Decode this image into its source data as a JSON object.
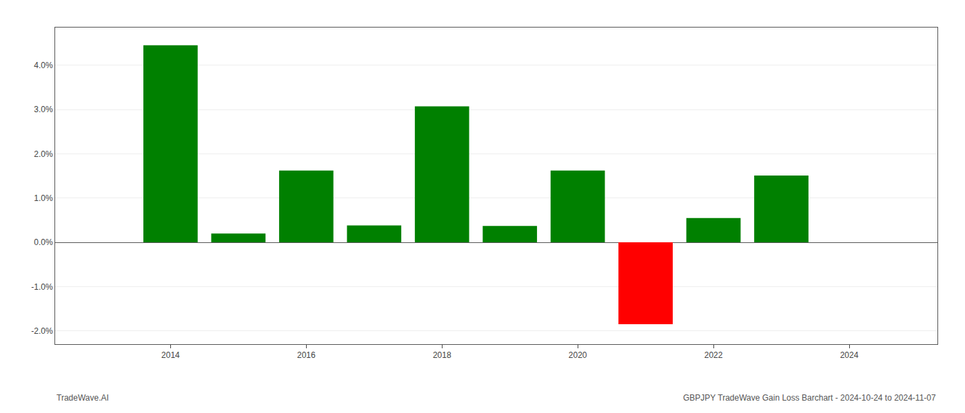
{
  "chart_data": {
    "type": "bar",
    "x": [
      2014,
      2015,
      2016,
      2017,
      2018,
      2019,
      2020,
      2021,
      2022,
      2023
    ],
    "values": [
      4.45,
      0.2,
      1.62,
      0.38,
      3.07,
      0.37,
      1.62,
      -1.85,
      0.55,
      1.51
    ],
    "colors": [
      "#008000",
      "#008000",
      "#008000",
      "#008000",
      "#008000",
      "#008000",
      "#008000",
      "#ff0000",
      "#008000",
      "#008000"
    ],
    "xlim": [
      2012.3,
      2025.3
    ],
    "xticks": [
      2014,
      2016,
      2018,
      2020,
      2022,
      2024
    ],
    "ylim": [
      -2.3,
      4.85
    ],
    "yticks": [
      {
        "value": -2.0,
        "label": "-2.0%"
      },
      {
        "value": -1.0,
        "label": "-1.0%"
      },
      {
        "value": 0.0,
        "label": "0.0%"
      },
      {
        "value": 1.0,
        "label": "1.0%"
      },
      {
        "value": 2.0,
        "label": "2.0%"
      },
      {
        "value": 3.0,
        "label": "3.0%"
      },
      {
        "value": 4.0,
        "label": "4.0%"
      }
    ],
    "grid": "y",
    "annotations": [
      "TradeWave.AI",
      "GBPJPY TradeWave Gain Loss Barchart - 2024-10-24 to 2024-11-07"
    ]
  }
}
